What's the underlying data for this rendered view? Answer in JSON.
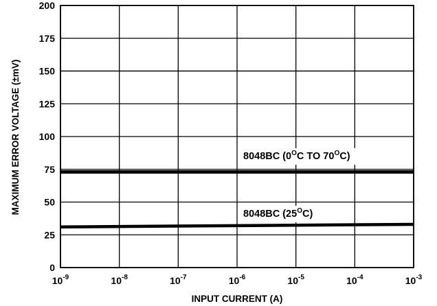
{
  "chart_data": {
    "type": "line",
    "title": "",
    "xlabel": "INPUT CURRENT (A)",
    "ylabel": "MAXIMUM ERROR VOLTAGE (±mV)",
    "x_scale": "log",
    "xlim": [
      1e-09,
      0.001
    ],
    "ylim": [
      0,
      200
    ],
    "grid": true,
    "x_ticks": [
      {
        "value": 1e-09,
        "base": "10",
        "exp": "-9"
      },
      {
        "value": 1e-08,
        "base": "10",
        "exp": "-8"
      },
      {
        "value": 1e-07,
        "base": "10",
        "exp": "-7"
      },
      {
        "value": 1e-06,
        "base": "10",
        "exp": "-6"
      },
      {
        "value": 1e-05,
        "base": "10",
        "exp": "-5"
      },
      {
        "value": 0.0001,
        "base": "10",
        "exp": "-4"
      },
      {
        "value": 0.001,
        "base": "10",
        "exp": "-3"
      }
    ],
    "y_ticks": [
      0,
      25,
      50,
      75,
      100,
      125,
      150,
      175,
      200
    ],
    "series": [
      {
        "label_parts": [
          "8048BC (0",
          "O",
          "C TO 70",
          "O",
          "C)"
        ],
        "x": [
          1e-09,
          0.001
        ],
        "y": [
          73,
          73
        ]
      },
      {
        "label_parts": [
          "8048BC (25",
          "O",
          "C)"
        ],
        "x": [
          1e-09,
          0.001
        ],
        "y": [
          31,
          33
        ]
      }
    ],
    "reference_lines": [
      {
        "x": [
          1e-09,
          0.001
        ],
        "y": [
          150,
          150
        ]
      }
    ]
  }
}
